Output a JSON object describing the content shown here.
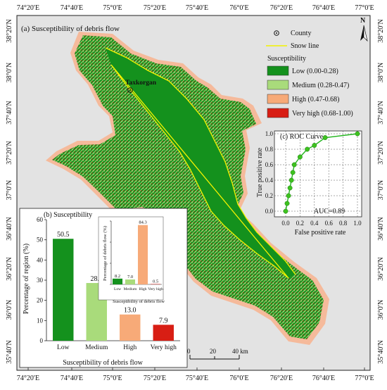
{
  "map": {
    "panel_a_title": "(a)  Susceptibility of debris flow",
    "city_label": "Taxkorgan",
    "north_label": "N",
    "colors": {
      "background": "#e3e3e3",
      "buffer": "#f5ba9b",
      "low": "#14911d",
      "medium": "#a9db7b",
      "high": "#f7aa78",
      "very_high": "#d81e14",
      "snow_line": "#f2f200"
    },
    "lon_ticks": [
      "74°20′E",
      "74°40′E",
      "75°0′E",
      "75°20′E",
      "75°40′E",
      "76°0′E",
      "76°20′E",
      "76°40′E",
      "77°0′E"
    ],
    "lat_ticks": [
      "38°20′N",
      "38°0′N",
      "37°40′N",
      "37°20′N",
      "37°0′N",
      "36°40′N",
      "36°20′N",
      "36°0′N",
      "35°40′N"
    ]
  },
  "legend": {
    "county": "County",
    "snow_line": "Snow line",
    "heading": "Susceptibility",
    "classes": [
      {
        "label": "Low (0.00-0.28)",
        "color": "#14911d"
      },
      {
        "label": "Medium (0.28-0.47)",
        "color": "#a9db7b"
      },
      {
        "label": "High (0.47-0.68)",
        "color": "#f7aa78"
      },
      {
        "label": "Very high (0.68-1.00)",
        "color": "#d81e14"
      }
    ]
  },
  "scale_bar": {
    "labels": [
      "0",
      "20",
      "40 km"
    ]
  },
  "chart_data": [
    {
      "type": "bar",
      "title": "(b)  Susceptibility",
      "categories": [
        "Low",
        "Medium",
        "High",
        "Very high"
      ],
      "values": [
        50.5,
        28.6,
        13.0,
        7.9
      ],
      "value_labels": [
        "50.5",
        "28.6",
        "13.0",
        "7.9"
      ],
      "colors": [
        "#14911d",
        "#a9db7b",
        "#f7aa78",
        "#d81e14"
      ],
      "xlabel": "Susceptibility of debris flow",
      "ylabel": "Percentage of region (%)",
      "ylim": [
        0,
        60
      ],
      "yticks": [
        "0",
        "10",
        "20",
        "30",
        "40",
        "50",
        "60"
      ]
    },
    {
      "type": "bar",
      "categories": [
        "Low",
        "Medium",
        "High",
        "Very high"
      ],
      "values": [
        8.2,
        7.0,
        84.3,
        0.5
      ],
      "value_labels": [
        "8.2",
        "7.0",
        "84.3",
        "0.5"
      ],
      "colors": [
        "#14911d",
        "#a9db7b",
        "#f7aa78",
        "#d81e14"
      ],
      "xlabel": "Susceptibility of debris flow",
      "ylabel": "Percentage of debris flow (%)",
      "ylim": [
        0,
        90
      ],
      "yticks": [
        "0",
        "30",
        "60",
        "90"
      ]
    },
    {
      "type": "line",
      "title": "(c)  ROC Curve",
      "xlabel": "False positive rate",
      "ylabel": "True positive rate",
      "annotation": "AUC=0.89",
      "x": [
        0.0,
        0.02,
        0.04,
        0.06,
        0.08,
        0.1,
        0.12,
        0.2,
        0.3,
        0.4,
        0.55,
        1.0
      ],
      "y": [
        0.0,
        0.1,
        0.2,
        0.3,
        0.4,
        0.5,
        0.6,
        0.7,
        0.8,
        0.85,
        0.95,
        1.0
      ],
      "xlim": [
        0,
        1
      ],
      "ylim": [
        0,
        1
      ],
      "xticks": [
        "0.0",
        "0.2",
        "0.4",
        "0.6",
        "0.8",
        "1.0"
      ],
      "yticks": [
        "0.0",
        "0.2",
        "0.4",
        "0.6",
        "0.8",
        "1.0"
      ],
      "grid": true
    }
  ]
}
